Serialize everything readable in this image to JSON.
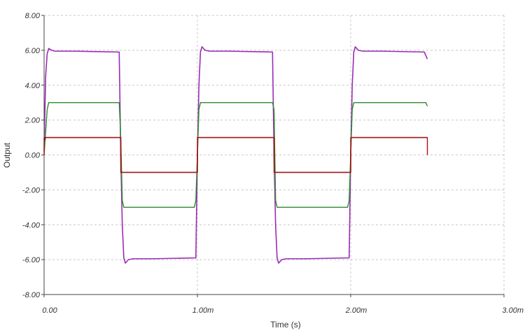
{
  "chart_data": {
    "type": "line",
    "title": "",
    "xlabel": "Time (s)",
    "ylabel": "Output",
    "xlim": [
      0,
      0.003
    ],
    "ylim": [
      -8,
      8
    ],
    "grid": true,
    "legend": "none",
    "x_ticks": [
      {
        "value": 0,
        "label": "0.00"
      },
      {
        "value": 0.001,
        "label": "1.00m"
      },
      {
        "value": 0.002,
        "label": "2.00m"
      },
      {
        "value": 0.003,
        "label": "3.00m"
      }
    ],
    "y_ticks": [
      {
        "value": 8,
        "label": "8.00"
      },
      {
        "value": 6,
        "label": "6.00"
      },
      {
        "value": 4,
        "label": "4.00"
      },
      {
        "value": 2,
        "label": "2.00"
      },
      {
        "value": 0,
        "label": "0.00"
      },
      {
        "value": -2,
        "label": "-2.00"
      },
      {
        "value": -4,
        "label": "-4.00"
      },
      {
        "value": -6,
        "label": "-6.00"
      },
      {
        "value": -8,
        "label": "-8.00"
      }
    ],
    "series": [
      {
        "color": "#9a2bb5",
        "x": [
          0,
          1e-05,
          2e-05,
          3e-05,
          5e-05,
          7e-05,
          0.0001,
          0.0002,
          0.00049,
          0.0005,
          0.00051,
          0.00052,
          0.00053,
          0.00055,
          0.00058,
          0.0006,
          0.0007,
          0.00099,
          0.001,
          0.00101,
          0.00102,
          0.00103,
          0.00105,
          0.00108,
          0.0011,
          0.0012,
          0.00149,
          0.0015,
          0.00151,
          0.00152,
          0.00153,
          0.00155,
          0.00158,
          0.0016,
          0.0017,
          0.00199,
          0.002,
          0.00201,
          0.00202,
          0.00203,
          0.00205,
          0.00208,
          0.0021,
          0.0022,
          0.00248,
          0.0025
        ],
        "values": [
          0.2,
          4.5,
          5.8,
          6.1,
          6.0,
          5.95,
          5.95,
          5.95,
          5.9,
          0.0,
          -4.0,
          -5.9,
          -6.2,
          -6.0,
          -5.95,
          -5.95,
          -5.95,
          -5.9,
          0.0,
          4.0,
          5.9,
          6.2,
          6.0,
          5.95,
          5.95,
          5.95,
          5.9,
          0.0,
          -4.0,
          -5.9,
          -6.2,
          -6.0,
          -5.95,
          -5.95,
          -5.95,
          -5.9,
          0.0,
          4.0,
          5.9,
          6.2,
          6.0,
          5.95,
          5.95,
          5.95,
          5.9,
          5.5
        ]
      },
      {
        "color": "#2e8b2e",
        "x": [
          0,
          2e-05,
          3e-05,
          0.0002,
          0.00049,
          0.0005,
          0.00051,
          0.00052,
          0.0006,
          0.00098,
          0.00099,
          0.001,
          0.00101,
          0.00102,
          0.0011,
          0.00149,
          0.0015,
          0.00151,
          0.00152,
          0.0016,
          0.00198,
          0.00199,
          0.002,
          0.00201,
          0.00202,
          0.0021,
          0.00249,
          0.0025
        ],
        "values": [
          0.0,
          2.6,
          3.0,
          3.0,
          3.0,
          1.0,
          -2.6,
          -3.0,
          -3.0,
          -3.0,
          -2.6,
          0.0,
          2.6,
          3.0,
          3.0,
          3.0,
          2.6,
          -2.6,
          -3.0,
          -3.0,
          -3.0,
          -2.6,
          0.0,
          2.6,
          3.0,
          3.0,
          3.0,
          2.8
        ]
      },
      {
        "color": "#222222",
        "x": [
          0,
          1e-05,
          0.0005,
          0.000501,
          0.001,
          0.001001,
          0.0015,
          0.001501,
          0.002,
          0.002001,
          0.0025
        ],
        "values": [
          0.8,
          1.0,
          1.0,
          -1.0,
          -1.0,
          1.0,
          1.0,
          -1.0,
          -1.0,
          1.0,
          1.0
        ]
      },
      {
        "color": "#b01010",
        "x": [
          0,
          1e-07,
          0.0005,
          0.0005001,
          0.001,
          0.0010001,
          0.0015,
          0.0015001,
          0.002,
          0.0020001,
          0.0025,
          0.0025001
        ],
        "values": [
          0.0,
          1.0,
          1.0,
          -1.0,
          -1.0,
          1.0,
          1.0,
          -1.0,
          -1.0,
          1.0,
          1.0,
          0.0
        ]
      }
    ]
  }
}
